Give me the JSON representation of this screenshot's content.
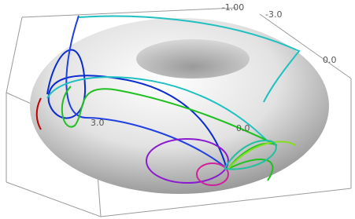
{
  "labels": [
    "-1.00",
    "-3.0",
    "0.0",
    "3.0",
    "0.0"
  ]
}
